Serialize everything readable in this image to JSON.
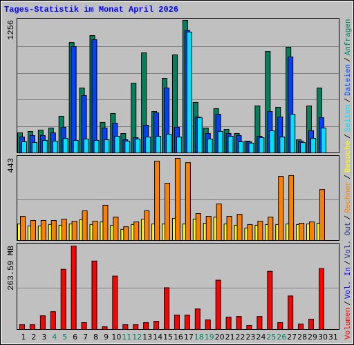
{
  "title": "Tages-Statistik im Monat April 2026",
  "legend_separator": "/",
  "legend_extra": [
    {
      "name": "Vol. In",
      "color": "#0000ff"
    },
    {
      "name": "Vol. Out",
      "color": "#203080"
    }
  ],
  "chart_data": [
    {
      "type": "bar",
      "ylim": [
        0,
        1256
      ],
      "yticks": [
        1256
      ],
      "series": [
        {
          "name": "Anfragen",
          "color": "#00805c",
          "values": [
            190,
            203,
            216,
            235,
            347,
            1046,
            615,
            1112,
            288,
            373,
            183,
            661,
            948,
            392,
            706,
            929,
            1256,
            478,
            235,
            419,
            222,
            183,
            111,
            445,
            961,
            432,
            1001,
            124,
            445,
            615,
            0
          ]
        },
        {
          "name": "Dateien",
          "color": "#0040ff",
          "values": [
            150,
            164,
            164,
            190,
            242,
            1007,
            543,
            1073,
            235,
            281,
            124,
            144,
            262,
            379,
            615,
            242,
            1160,
            340,
            183,
            366,
            183,
            164,
            105,
            157,
            392,
            340,
            909,
            111,
            209,
            333,
            0
          ]
        },
        {
          "name": "Seiten",
          "color": "#00e0ff",
          "values": [
            105,
            98,
            118,
            111,
            137,
            118,
            131,
            118,
            124,
            157,
            111,
            131,
            150,
            157,
            177,
            150,
            1145,
            333,
            131,
            203,
            157,
            105,
            92,
            144,
            209,
            150,
            366,
            98,
            137,
            235,
            0
          ]
        }
      ]
    },
    {
      "type": "bar",
      "ylim": [
        0,
        443
      ],
      "yticks": [
        443
      ],
      "series": [
        {
          "name": "Besuche",
          "color": "#ffff00",
          "values": [
            89,
            78,
            78,
            86,
            82,
            89,
            112,
            86,
            100,
            82,
            60,
            86,
            115,
            89,
            89,
            119,
            89,
            115,
            93,
            126,
            89,
            82,
            67,
            82,
            86,
            86,
            89,
            86,
            89,
            93,
            0
          ]
        },
        {
          "name": "Rechner",
          "color": "#ff8000",
          "values": [
            130,
            108,
            108,
            108,
            115,
            104,
            160,
            104,
            190,
            126,
            74,
            100,
            160,
            428,
            309,
            443,
            420,
            145,
            130,
            197,
            130,
            141,
            86,
            104,
            126,
            346,
            350,
            93,
            100,
            275,
            0
          ]
        }
      ]
    },
    {
      "type": "bar",
      "ylim": [
        0,
        263.59
      ],
      "yticks": [
        {
          "value": 263.59,
          "label": "263.59 MB"
        }
      ],
      "categories": [
        "1",
        "2",
        "3",
        "4",
        "5",
        "6",
        "7",
        "8",
        "9",
        "10",
        "11",
        "12",
        "13",
        "14",
        "15",
        "16",
        "17",
        "18",
        "19",
        "20",
        "21",
        "22",
        "23",
        "24",
        "25",
        "26",
        "27",
        "28",
        "29",
        "30",
        "31"
      ],
      "category_colors": [
        "#000000",
        "#000000",
        "#000000",
        "#00805c",
        "#00805c",
        "#000000",
        "#000000",
        "#000000",
        "#000000",
        "#000000",
        "#00805c",
        "#00805c",
        "#000000",
        "#000000",
        "#000000",
        "#000000",
        "#000000",
        "#00805c",
        "#00805c",
        "#000000",
        "#000000",
        "#000000",
        "#000000",
        "#000000",
        "#00805c",
        "#00805c",
        "#000000",
        "#000000",
        "#000000",
        "#000000",
        "#000000"
      ],
      "series": [
        {
          "name": "Volumen",
          "color": "#ff0000",
          "values": [
            15.1,
            15.1,
            43.2,
            56.2,
            190.1,
            263.59,
            21.6,
            216.1,
            8.6,
            168.5,
            15.1,
            15.1,
            21.6,
            25.9,
            131.8,
            45.4,
            45.4,
            64.8,
            30.2,
            155.6,
            38.9,
            41.0,
            13.0,
            41.0,
            183.6,
            21.6,
            105.9,
            17.3,
            32.4,
            192.3,
            0
          ]
        }
      ]
    }
  ]
}
